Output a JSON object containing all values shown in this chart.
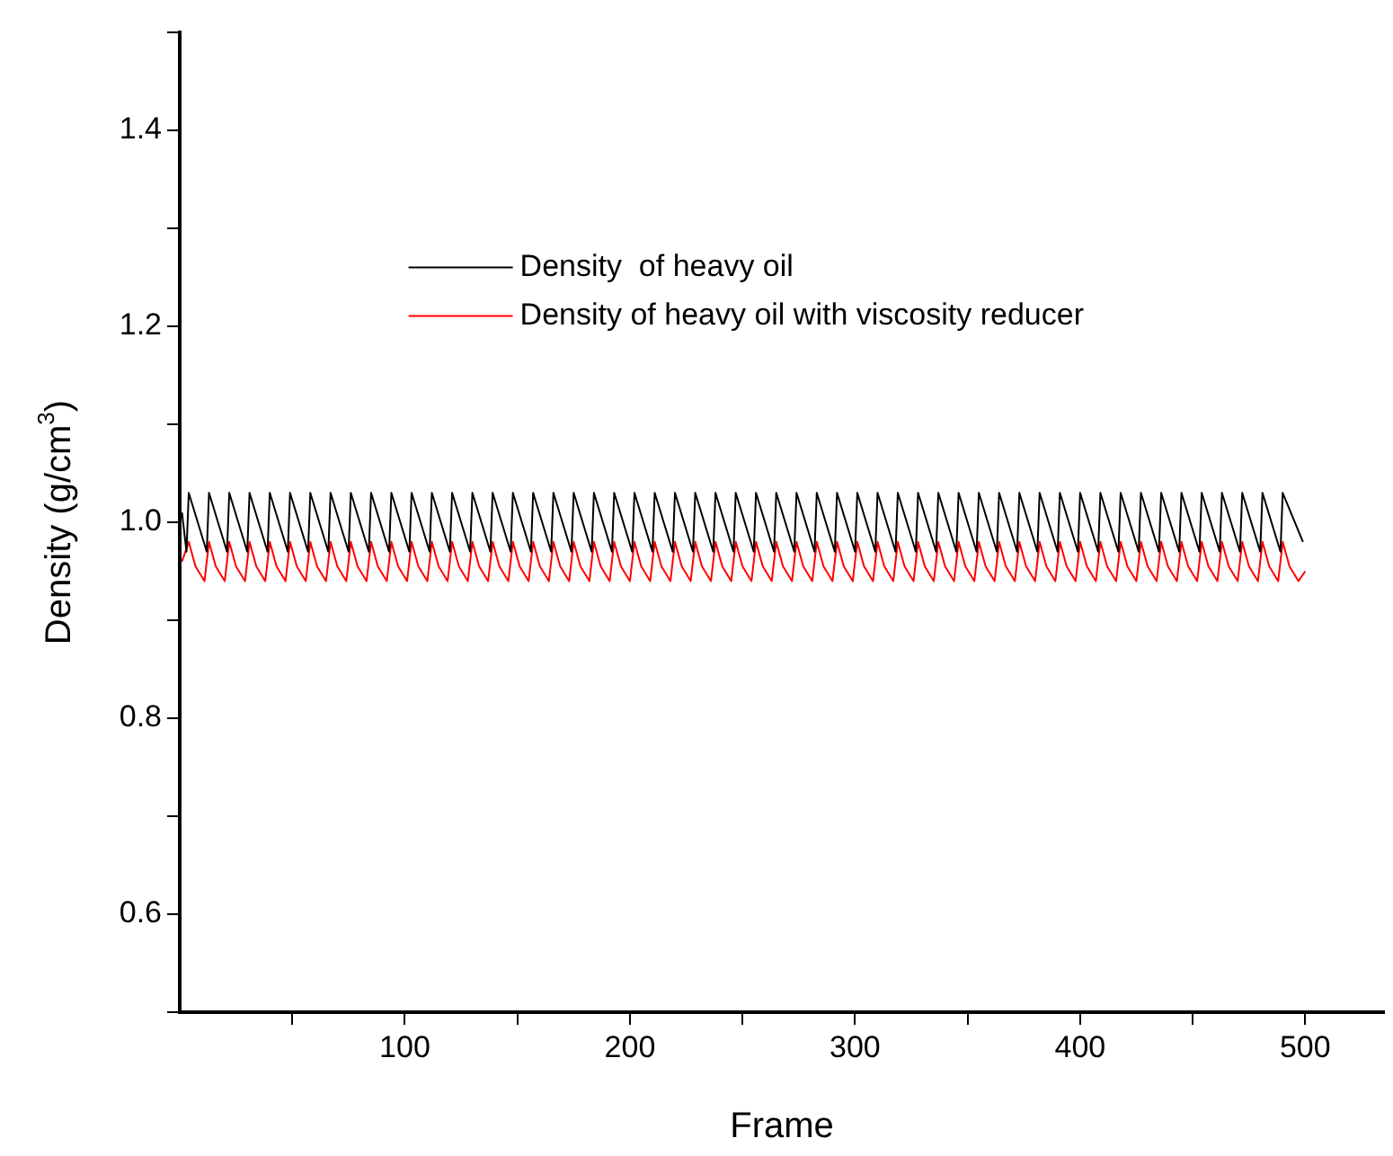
{
  "chart_data": {
    "type": "line",
    "xlabel": "Frame",
    "ylabel": "Density (g/cm$^{3}$)",
    "xlim": [
      0,
      535
    ],
    "xticks": [
      {
        "value": 50,
        "label": null
      },
      100,
      {
        "value": 150,
        "label": null
      },
      200,
      {
        "value": 250,
        "label": null
      },
      300,
      {
        "value": 350,
        "label": null
      },
      400,
      {
        "value": 450,
        "label": null
      },
      500
    ],
    "ylim": [
      0.5,
      1.5
    ],
    "yticks": [
      {
        "value": 0.5,
        "label": null
      },
      {
        "value": 0.6,
        "label": "0.6"
      },
      {
        "value": 0.7,
        "label": null
      },
      {
        "value": 0.8,
        "label": "0.8"
      },
      {
        "value": 0.9,
        "label": null
      },
      {
        "value": 1.0,
        "label": "1.0"
      },
      {
        "value": 1.1,
        "label": null
      },
      {
        "value": 1.2,
        "label": "1.2"
      },
      {
        "value": 1.3,
        "label": null
      },
      {
        "value": 1.4,
        "label": "1.4"
      },
      {
        "value": 1.5,
        "label": null
      }
    ],
    "grid": false,
    "legend": "top",
    "series": [
      {
        "name": "Density  of heavy oil",
        "color": "#000000",
        "x": [
          1,
          3,
          4,
          12,
          13,
          21,
          22,
          30,
          31,
          39,
          40,
          48,
          49,
          57,
          58,
          66,
          67,
          75,
          76,
          84,
          85,
          93,
          94,
          102,
          103,
          111,
          112,
          120,
          121,
          129,
          130,
          138,
          139,
          147,
          148,
          156,
          157,
          165,
          166,
          174,
          175,
          183,
          184,
          192,
          193,
          201,
          202,
          210,
          211,
          219,
          220,
          228,
          229,
          237,
          238,
          246,
          247,
          255,
          256,
          264,
          265,
          273,
          274,
          282,
          283,
          291,
          292,
          300,
          301,
          309,
          310,
          318,
          319,
          327,
          328,
          336,
          337,
          345,
          346,
          354,
          355,
          363,
          364,
          372,
          373,
          381,
          382,
          390,
          391,
          399,
          400,
          408,
          409,
          417,
          418,
          426,
          427,
          435,
          436,
          444,
          445,
          453,
          454,
          462,
          463,
          471,
          472,
          480,
          481,
          489,
          490,
          499
        ],
        "values": [
          1.01,
          0.97,
          1.03,
          0.97,
          1.03,
          0.97,
          1.03,
          0.97,
          1.03,
          0.97,
          1.03,
          0.97,
          1.03,
          0.97,
          1.03,
          0.97,
          1.03,
          0.97,
          1.03,
          0.97,
          1.03,
          0.97,
          1.03,
          0.97,
          1.03,
          0.97,
          1.03,
          0.97,
          1.03,
          0.97,
          1.03,
          0.97,
          1.03,
          0.97,
          1.03,
          0.97,
          1.03,
          0.97,
          1.03,
          0.97,
          1.03,
          0.97,
          1.03,
          0.97,
          1.03,
          0.97,
          1.03,
          0.97,
          1.03,
          0.97,
          1.03,
          0.97,
          1.03,
          0.97,
          1.03,
          0.97,
          1.03,
          0.97,
          1.03,
          0.97,
          1.03,
          0.97,
          1.03,
          0.97,
          1.03,
          0.97,
          1.03,
          0.97,
          1.03,
          0.97,
          1.03,
          0.97,
          1.03,
          0.97,
          1.03,
          0.97,
          1.03,
          0.97,
          1.03,
          0.97,
          1.03,
          0.97,
          1.03,
          0.97,
          1.03,
          0.97,
          1.03,
          0.97,
          1.03,
          0.97,
          1.03,
          0.97,
          1.03,
          0.97,
          1.03,
          0.97,
          1.03,
          0.97,
          1.03,
          0.97,
          1.03,
          0.97,
          1.03,
          0.97,
          1.03,
          0.97,
          1.03,
          0.97,
          1.03,
          0.97,
          1.03,
          0.98
        ]
      },
      {
        "name": "Density of heavy oil with viscosity reducer",
        "color": "#ff0000",
        "x": [
          1,
          4,
          7,
          11,
          13,
          16,
          20,
          22,
          25,
          29,
          31,
          34,
          38,
          40,
          43,
          47,
          49,
          52,
          56,
          58,
          61,
          65,
          67,
          70,
          74,
          76,
          79,
          83,
          85,
          88,
          92,
          94,
          97,
          101,
          103,
          106,
          110,
          112,
          115,
          119,
          121,
          124,
          128,
          130,
          133,
          137,
          139,
          142,
          146,
          148,
          151,
          155,
          157,
          160,
          164,
          166,
          169,
          173,
          175,
          178,
          182,
          184,
          187,
          191,
          193,
          196,
          200,
          202,
          205,
          209,
          211,
          214,
          218,
          220,
          223,
          227,
          229,
          232,
          236,
          238,
          241,
          245,
          247,
          250,
          254,
          256,
          259,
          263,
          265,
          268,
          272,
          274,
          277,
          281,
          283,
          286,
          290,
          292,
          295,
          299,
          301,
          304,
          308,
          310,
          313,
          317,
          319,
          322,
          326,
          328,
          331,
          335,
          337,
          340,
          344,
          346,
          349,
          353,
          355,
          358,
          362,
          364,
          367,
          371,
          373,
          376,
          380,
          382,
          385,
          389,
          391,
          394,
          398,
          400,
          403,
          407,
          409,
          412,
          416,
          418,
          421,
          425,
          427,
          430,
          434,
          436,
          439,
          443,
          445,
          448,
          452,
          454,
          457,
          461,
          463,
          466,
          470,
          472,
          475,
          479,
          481,
          484,
          488,
          490,
          493,
          497,
          500
        ],
        "values": [
          0.96,
          0.98,
          0.955,
          0.94,
          0.98,
          0.955,
          0.94,
          0.98,
          0.955,
          0.94,
          0.98,
          0.955,
          0.94,
          0.98,
          0.955,
          0.94,
          0.98,
          0.955,
          0.94,
          0.98,
          0.955,
          0.94,
          0.98,
          0.955,
          0.94,
          0.98,
          0.955,
          0.94,
          0.98,
          0.955,
          0.94,
          0.98,
          0.955,
          0.94,
          0.98,
          0.955,
          0.94,
          0.98,
          0.955,
          0.94,
          0.98,
          0.955,
          0.94,
          0.98,
          0.955,
          0.94,
          0.98,
          0.955,
          0.94,
          0.98,
          0.955,
          0.94,
          0.98,
          0.955,
          0.94,
          0.98,
          0.955,
          0.94,
          0.98,
          0.955,
          0.94,
          0.98,
          0.955,
          0.94,
          0.98,
          0.955,
          0.94,
          0.98,
          0.955,
          0.94,
          0.98,
          0.955,
          0.94,
          0.98,
          0.955,
          0.94,
          0.98,
          0.955,
          0.94,
          0.98,
          0.955,
          0.94,
          0.98,
          0.955,
          0.94,
          0.98,
          0.955,
          0.94,
          0.98,
          0.955,
          0.94,
          0.98,
          0.955,
          0.94,
          0.98,
          0.955,
          0.94,
          0.98,
          0.955,
          0.94,
          0.98,
          0.955,
          0.94,
          0.98,
          0.955,
          0.94,
          0.98,
          0.955,
          0.94,
          0.98,
          0.955,
          0.94,
          0.98,
          0.955,
          0.94,
          0.98,
          0.955,
          0.94,
          0.98,
          0.955,
          0.94,
          0.98,
          0.955,
          0.94,
          0.98,
          0.955,
          0.94,
          0.98,
          0.955,
          0.94,
          0.98,
          0.955,
          0.94,
          0.98,
          0.955,
          0.94,
          0.98,
          0.955,
          0.94,
          0.98,
          0.955,
          0.94,
          0.98,
          0.955,
          0.94,
          0.98,
          0.955,
          0.94,
          0.98,
          0.955,
          0.94,
          0.98,
          0.955,
          0.94,
          0.98,
          0.955,
          0.94,
          0.98,
          0.955,
          0.94,
          0.98,
          0.955,
          0.94,
          0.98,
          0.955,
          0.94,
          0.95
        ]
      }
    ]
  }
}
